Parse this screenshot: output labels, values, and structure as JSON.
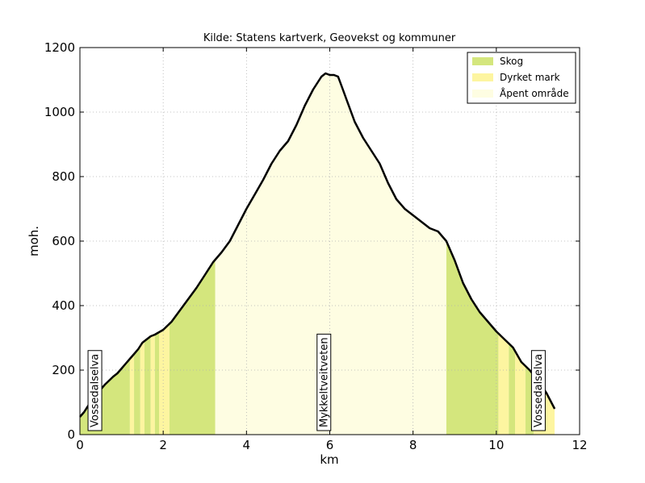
{
  "chart_data": {
    "type": "area",
    "title": "Kilde: Statens kartverk, Geovekst og kommuner",
    "xlabel": "km",
    "ylabel": "moh.",
    "xlim": [
      0,
      12
    ],
    "ylim": [
      0,
      1200
    ],
    "xticks": [
      "0",
      "2",
      "4",
      "6",
      "8",
      "10",
      "12"
    ],
    "yticks": [
      "0",
      "200",
      "400",
      "600",
      "800",
      "1000",
      "1200"
    ],
    "grid": true,
    "legend_position": "top-right",
    "legend": [
      {
        "label": "Skog",
        "color": "#d4e67d"
      },
      {
        "label": "Dyrket mark",
        "color": "#fdf5a0"
      },
      {
        "label": "Åpent område",
        "color": "#fefde2"
      }
    ],
    "profile": {
      "x": [
        0,
        0.1,
        0.2,
        0.4,
        0.6,
        0.8,
        0.9,
        1.0,
        1.1,
        1.2,
        1.3,
        1.4,
        1.5,
        1.6,
        1.7,
        1.8,
        2.0,
        2.2,
        2.4,
        2.6,
        2.8,
        3.0,
        3.2,
        3.4,
        3.6,
        3.8,
        4.0,
        4.2,
        4.4,
        4.6,
        4.8,
        5.0,
        5.2,
        5.4,
        5.6,
        5.8,
        5.9,
        6.0,
        6.1,
        6.2,
        6.3,
        6.4,
        6.6,
        6.8,
        7.0,
        7.2,
        7.4,
        7.6,
        7.8,
        8.0,
        8.2,
        8.4,
        8.6,
        8.8,
        9.0,
        9.2,
        9.4,
        9.6,
        9.8,
        10.0,
        10.2,
        10.4,
        10.6,
        10.8,
        11.0,
        11.2,
        11.4
      ],
      "y": [
        55,
        70,
        90,
        125,
        155,
        180,
        190,
        205,
        220,
        235,
        250,
        265,
        285,
        295,
        305,
        310,
        325,
        350,
        385,
        420,
        455,
        495,
        535,
        565,
        600,
        650,
        700,
        745,
        790,
        840,
        880,
        910,
        960,
        1020,
        1070,
        1110,
        1120,
        1115,
        1115,
        1110,
        1075,
        1040,
        970,
        920,
        880,
        840,
        780,
        730,
        700,
        680,
        660,
        640,
        630,
        600,
        540,
        470,
        420,
        380,
        350,
        320,
        295,
        270,
        225,
        200,
        170,
        130,
        80
      ]
    },
    "land_cover_bands": [
      {
        "from": 0.0,
        "to": 1.2,
        "type": "Skog"
      },
      {
        "from": 1.2,
        "to": 1.3,
        "type": "Dyrket mark"
      },
      {
        "from": 1.3,
        "to": 1.45,
        "type": "Skog"
      },
      {
        "from": 1.45,
        "to": 1.55,
        "type": "Dyrket mark"
      },
      {
        "from": 1.55,
        "to": 1.7,
        "type": "Skog"
      },
      {
        "from": 1.7,
        "to": 1.8,
        "type": "Dyrket mark"
      },
      {
        "from": 1.8,
        "to": 1.9,
        "type": "Skog"
      },
      {
        "from": 1.9,
        "to": 2.15,
        "type": "Dyrket mark"
      },
      {
        "from": 2.15,
        "to": 3.25,
        "type": "Skog"
      },
      {
        "from": 3.25,
        "to": 8.8,
        "type": "Åpent område"
      },
      {
        "from": 8.8,
        "to": 10.05,
        "type": "Skog"
      },
      {
        "from": 10.05,
        "to": 10.3,
        "type": "Dyrket mark"
      },
      {
        "from": 10.3,
        "to": 10.45,
        "type": "Skog"
      },
      {
        "from": 10.45,
        "to": 10.7,
        "type": "Dyrket mark"
      },
      {
        "from": 10.7,
        "to": 10.9,
        "type": "Skog"
      },
      {
        "from": 10.9,
        "to": 11.4,
        "type": "Dyrket mark"
      }
    ],
    "annotations": [
      {
        "text": "Vossedalselva",
        "x": 0.35
      },
      {
        "text": "Mykkeltveitveten",
        "x": 5.85
      },
      {
        "text": "Vossedalselva",
        "x": 11.0
      }
    ]
  }
}
